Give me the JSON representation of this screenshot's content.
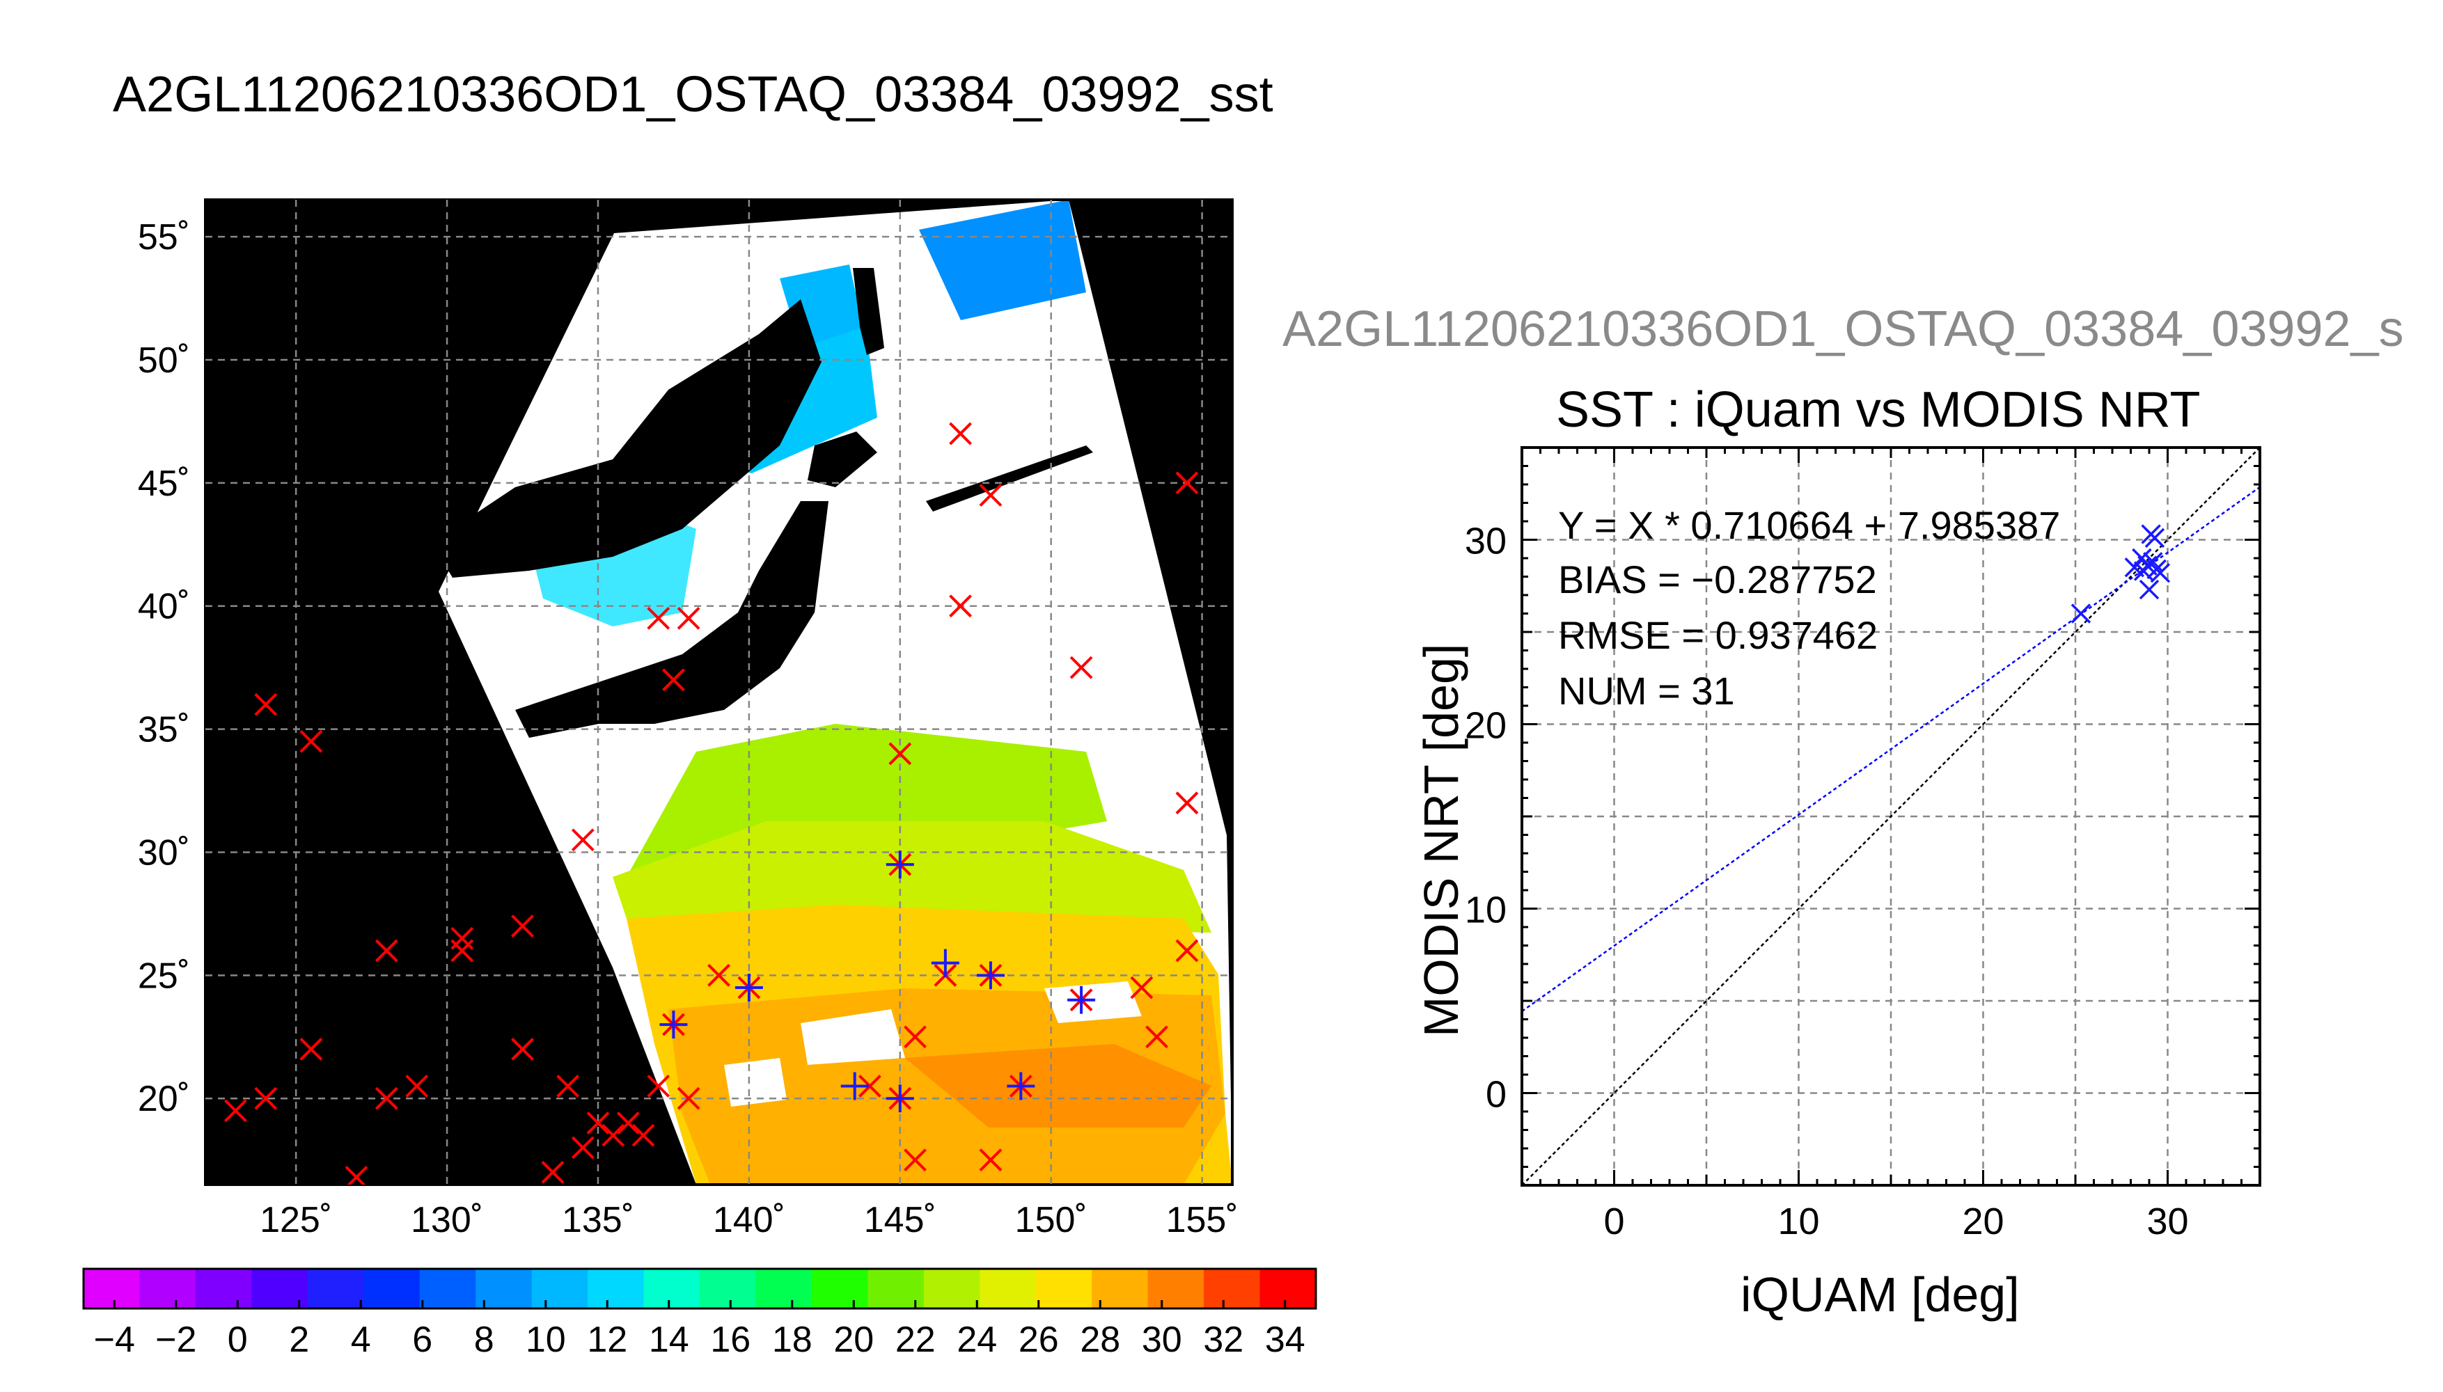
{
  "figure": {
    "title": "A2GL11206210336OD1_OSTAQ_03384_03992_sst",
    "subtitle": "A2GL11206210336OD1_OSTAQ_03384_03992_s",
    "map_lon_ticks": [
      "125˚",
      "130˚",
      "135˚",
      "140˚",
      "145˚",
      "150˚",
      "155˚"
    ],
    "map_lat_ticks": [
      "55˚",
      "50˚",
      "45˚",
      "40˚",
      "35˚",
      "30˚",
      "25˚",
      "20˚"
    ],
    "colorbar_ticks": [
      "−4",
      "−2",
      "0",
      "2",
      "4",
      "6",
      "8",
      "10",
      "12",
      "14",
      "16",
      "18",
      "20",
      "22",
      "24",
      "26",
      "28",
      "30",
      "32",
      "34"
    ]
  },
  "colors": {
    "land": "#000000",
    "cloud": "#ffffff",
    "iquam_marker": "#ff0000",
    "matchup_marker": "#1a1aff",
    "fit_line": "#0000ff",
    "identity_line": "#000000",
    "colorbar": [
      "#e000ff",
      "#b000ff",
      "#8000ff",
      "#5000ff",
      "#2020ff",
      "#0030ff",
      "#0060ff",
      "#0090ff",
      "#00b8ff",
      "#00d8ff",
      "#00ffcc",
      "#00ff90",
      "#00ff50",
      "#20ff00",
      "#70f000",
      "#b0f000",
      "#e0f000",
      "#ffe000",
      "#ffb000",
      "#ff8000",
      "#ff4000",
      "#ff0000"
    ]
  },
  "chart_data": [
    {
      "type": "heatmap",
      "description_units": "sea surface temperature (deg C) on lon/lat map",
      "xlim": [
        122,
        156
      ],
      "ylim": [
        16.5,
        56.5
      ],
      "x_ticks": [
        125,
        130,
        135,
        140,
        145,
        150,
        155
      ],
      "y_ticks": [
        55,
        50,
        45,
        40,
        35,
        30,
        25,
        20
      ],
      "colorbar_range": [
        -5,
        35
      ],
      "iquam_points": [
        [
          137.0,
          39.5
        ],
        [
          138.0,
          39.5
        ],
        [
          147.0,
          47.0
        ],
        [
          148.0,
          44.5
        ],
        [
          147.0,
          40.0
        ],
        [
          151.0,
          37.5
        ],
        [
          154.5,
          45.0
        ],
        [
          154.5,
          32.0
        ],
        [
          137.5,
          37.0
        ],
        [
          145.0,
          34.0
        ],
        [
          124.0,
          36.0
        ],
        [
          125.5,
          34.5
        ],
        [
          134.5,
          30.5
        ],
        [
          132.5,
          27.0
        ],
        [
          128.0,
          26.0
        ],
        [
          130.5,
          26.0
        ],
        [
          130.5,
          26.5
        ],
        [
          125.5,
          22.0
        ],
        [
          132.5,
          22.0
        ],
        [
          128.0,
          20.0
        ],
        [
          129.0,
          20.5
        ],
        [
          124.0,
          20.0
        ],
        [
          123.0,
          19.5
        ],
        [
          134.0,
          20.5
        ],
        [
          135.0,
          19.0
        ],
        [
          136.0,
          19.0
        ],
        [
          136.5,
          18.5
        ],
        [
          135.5,
          18.5
        ],
        [
          134.5,
          18.0
        ],
        [
          133.5,
          17.0
        ],
        [
          127.0,
          16.8
        ],
        [
          139.0,
          25.0
        ],
        [
          137.0,
          20.5
        ],
        [
          138.0,
          20.0
        ],
        [
          145.0,
          29.5
        ],
        [
          146.5,
          25.0
        ],
        [
          148.0,
          25.0
        ],
        [
          144.0,
          20.5
        ],
        [
          145.0,
          20.0
        ],
        [
          149.0,
          20.5
        ],
        [
          151.0,
          24.0
        ],
        [
          153.0,
          24.5
        ],
        [
          153.5,
          22.5
        ],
        [
          154.5,
          26.0
        ],
        [
          145.5,
          22.5
        ],
        [
          145.5,
          17.5
        ],
        [
          148.0,
          17.5
        ],
        [
          140.0,
          24.5
        ],
        [
          137.5,
          23.0
        ]
      ],
      "matchup_points": [
        [
          137.5,
          23.0
        ],
        [
          140.0,
          24.5
        ],
        [
          145.0,
          29.5
        ],
        [
          146.5,
          25.5
        ],
        [
          148.0,
          25.0
        ],
        [
          143.5,
          20.5
        ],
        [
          145.0,
          20.0
        ],
        [
          149.0,
          20.5
        ],
        [
          151.0,
          24.0
        ]
      ]
    },
    {
      "type": "scatter",
      "title": "SST : iQuam vs MODIS NRT",
      "xlabel": "iQUAM [deg]",
      "ylabel": "MODIS NRT [deg]",
      "xlim": [
        -5,
        35
      ],
      "ylim": [
        -5,
        35
      ],
      "x_ticks": [
        0,
        10,
        20,
        30
      ],
      "y_ticks": [
        0,
        10,
        20,
        30
      ],
      "grid": true,
      "fit": {
        "slope": 0.710664,
        "intercept": 7.985387
      },
      "identity_line": true,
      "stats": {
        "fit_text": "Y = X * 0.710664 + 7.985387",
        "bias_text": "BIAS = −0.287752",
        "rmse_text": "RMSE = 0.937462",
        "num_text": "NUM = 31"
      },
      "points": [
        [
          25.3,
          26.0
        ],
        [
          28.2,
          28.5
        ],
        [
          28.6,
          29.0
        ],
        [
          28.9,
          28.6
        ],
        [
          29.1,
          30.3
        ],
        [
          29.3,
          30.1
        ],
        [
          29.0,
          27.3
        ],
        [
          29.4,
          28.4
        ],
        [
          29.6,
          28.2
        ],
        [
          28.7,
          28.3
        ],
        [
          29.2,
          28.8
        ]
      ]
    }
  ]
}
